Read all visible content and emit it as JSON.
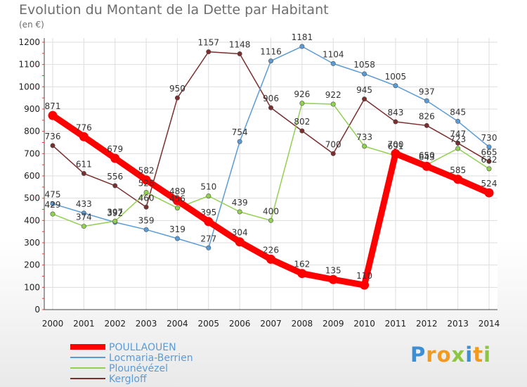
{
  "title": "Evolution du Montant de la Dette par Habitant",
  "unit": "(en €)",
  "brand": "Proxiti",
  "chart_data": {
    "type": "line",
    "title": "Evolution du Montant de la Dette par Habitant",
    "ylabel": "(en €)",
    "x": [
      2000,
      2001,
      2002,
      2003,
      2004,
      2005,
      2006,
      2007,
      2008,
      2009,
      2010,
      2011,
      2012,
      2013,
      2014
    ],
    "ylim": [
      0,
      1200
    ],
    "yticks": [
      0,
      100,
      200,
      300,
      400,
      500,
      600,
      700,
      800,
      900,
      1000,
      1100,
      1200
    ],
    "grid": true,
    "legend": "bottom-left",
    "series": [
      {
        "name": "POULLAOUEN",
        "color": "#ff0000",
        "values": [
          871,
          776,
          679,
          582,
          489,
          395,
          304,
          226,
          162,
          135,
          110,
          700,
          643,
          585,
          524
        ]
      },
      {
        "name": "Locmaria-Berrien",
        "color": "#5b9bd5",
        "values": [
          475,
          433,
          392,
          359,
          319,
          277,
          754,
          1116,
          1181,
          1104,
          1058,
          1005,
          937,
          845,
          730
        ]
      },
      {
        "name": "Plounévézel",
        "color": "#92d050",
        "values": [
          429,
          374,
          397,
          526,
          456,
          510,
          439,
          400,
          926,
          922,
          733,
          691,
          650,
          723,
          632
        ]
      },
      {
        "name": "Kergloff",
        "color": "#7a2e2e",
        "values": [
          736,
          611,
          556,
          460,
          950,
          1157,
          1148,
          906,
          802,
          700,
          945,
          843,
          826,
          747,
          665
        ]
      }
    ]
  }
}
